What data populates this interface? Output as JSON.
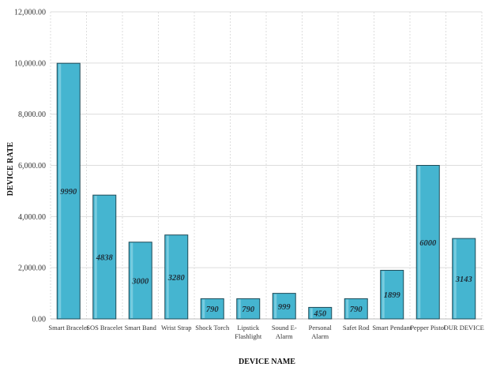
{
  "chart_data": {
    "type": "bar",
    "categories": [
      [
        "Smart Bracelet"
      ],
      [
        "SOS Bracelet"
      ],
      [
        "Smart Band"
      ],
      [
        "Wrist Strap"
      ],
      [
        "Shock Torch"
      ],
      [
        "Lipstick",
        "Flashlight"
      ],
      [
        "Sound E-",
        "Alarm"
      ],
      [
        "Personal",
        "Alarm"
      ],
      [
        "Safet Rod"
      ],
      [
        "Smart Pendant"
      ],
      [
        "Pepper Pistol"
      ],
      [
        "OUR DEVICE"
      ]
    ],
    "values": [
      9990,
      4838,
      3000,
      3280,
      790,
      790,
      999,
      450,
      790,
      1899,
      6000,
      3143
    ],
    "data_labels": [
      "9990",
      "4838",
      "3000",
      "3280",
      "790",
      "790",
      "999",
      "450",
      "790",
      "1899",
      "6000",
      "3143"
    ],
    "y_ticks": [
      {
        "value": 0,
        "label": "0.00"
      },
      {
        "value": 2000,
        "label": "2,000.00"
      },
      {
        "value": 4000,
        "label": "4,000.00"
      },
      {
        "value": 6000,
        "label": "6,000.00"
      },
      {
        "value": 8000,
        "label": "8,000.00"
      },
      {
        "value": 10000,
        "label": "10,000.00"
      },
      {
        "value": 12000,
        "label": "12,000.00"
      }
    ],
    "ylim": [
      0,
      12000
    ],
    "xlabel": "DEVICE NAME",
    "ylabel": "DEVICE RATE",
    "title": "",
    "grid": true,
    "legend": "none",
    "colors": {
      "bar_fill": "#45b5d0",
      "bar_stroke": "#1f4a57",
      "bar_highlight": "#8fd6e6",
      "grid": "#dddddd"
    }
  }
}
